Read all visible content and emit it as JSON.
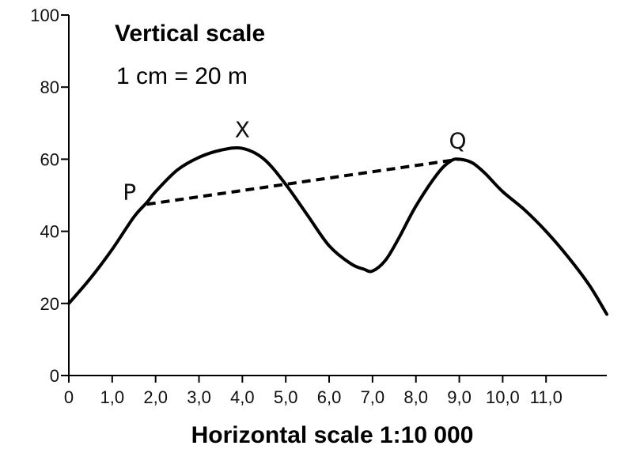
{
  "chart_data": {
    "type": "line",
    "title": "",
    "annotations": {
      "vertical_scale_title": "Vertical scale",
      "vertical_scale_value": "1 cm = 20 m",
      "horizontal_scale": "Horizontal scale 1:10 000"
    },
    "xlim": [
      0,
      12.4
    ],
    "ylim": [
      0,
      100
    ],
    "x_ticks": [
      0,
      1,
      2,
      3,
      4,
      5,
      6,
      7,
      8,
      9,
      10,
      11
    ],
    "x_tick_labels": [
      "0",
      "1,0",
      "2,0",
      "3,0",
      "4,0",
      "5,0",
      "6,0",
      "7,0",
      "8,0",
      "9,0",
      "10,0",
      "11,0"
    ],
    "y_ticks": [
      0,
      20,
      40,
      60,
      80,
      100
    ],
    "y_tick_labels": [
      "0",
      "20",
      "40",
      "60",
      "80",
      "100"
    ],
    "grid": false,
    "series": [
      {
        "x": [
          0,
          0.5,
          1.0,
          1.5,
          1.8,
          2.0,
          2.5,
          3.0,
          3.5,
          4.0,
          4.5,
          5.0,
          5.5,
          6.0,
          6.5,
          6.8,
          7.0,
          7.3,
          7.6,
          8.0,
          8.5,
          8.8,
          9.0,
          9.3,
          9.6,
          10.0,
          10.5,
          11.0,
          11.5,
          12.0,
          12.4
        ],
        "y": [
          20,
          27,
          35,
          44,
          48,
          51,
          57,
          60.5,
          62.5,
          63,
          60,
          53,
          44.5,
          36,
          31,
          29.5,
          29,
          32,
          38,
          47,
          56,
          59.5,
          60,
          59,
          56,
          51,
          46,
          40,
          33,
          25,
          17
        ],
        "color": "#000000"
      }
    ],
    "points": [
      {
        "label": "P",
        "x": 1.8,
        "y": 47.5
      },
      {
        "label": "X",
        "x": 4.0,
        "y": 63
      },
      {
        "label": "Q",
        "x": 9.0,
        "y": 60
      }
    ],
    "line_of_sight": {
      "from": "P",
      "to": "Q",
      "style": "dashed"
    }
  }
}
